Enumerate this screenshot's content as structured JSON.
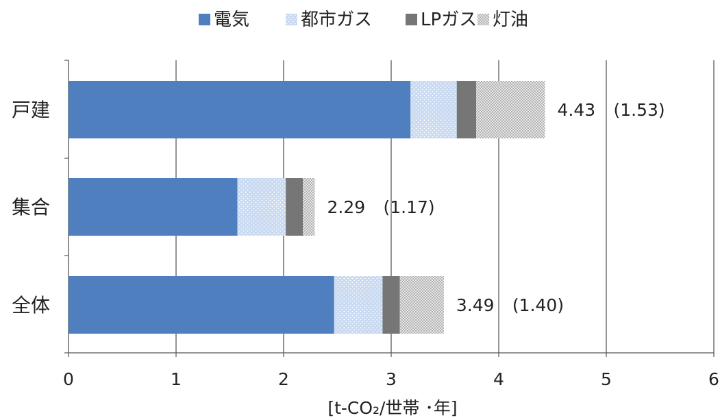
{
  "chart_data": {
    "type": "bar",
    "orientation": "horizontal",
    "stacked": true,
    "categories": [
      "戸建",
      "集合",
      "全体"
    ],
    "series": [
      {
        "name": "電気",
        "values": [
          3.18,
          1.57,
          2.47
        ],
        "color": "#4f7fbf",
        "pattern": "solid"
      },
      {
        "name": "都市ガス",
        "values": [
          0.43,
          0.45,
          0.45
        ],
        "color": "#c9daf1",
        "pattern": "dots"
      },
      {
        "name": "LPガス",
        "values": [
          0.18,
          0.16,
          0.16
        ],
        "color": "#767676",
        "pattern": "solid"
      },
      {
        "name": "灯油",
        "values": [
          0.64,
          0.11,
          0.41
        ],
        "color": "#d4d4d4",
        "pattern": "checker"
      }
    ],
    "totals": [
      "4.43",
      "2.29",
      "3.49"
    ],
    "parenthetical": [
      "(1.53)",
      "(1.17)",
      "(1.40)"
    ],
    "xlim": [
      0,
      6
    ],
    "xticks": [
      "0",
      "1",
      "2",
      "3",
      "4",
      "5",
      "6"
    ],
    "xlabel": "[t-CO₂/世帯 ･年]",
    "legend_position": "top",
    "grid": "vertical"
  }
}
